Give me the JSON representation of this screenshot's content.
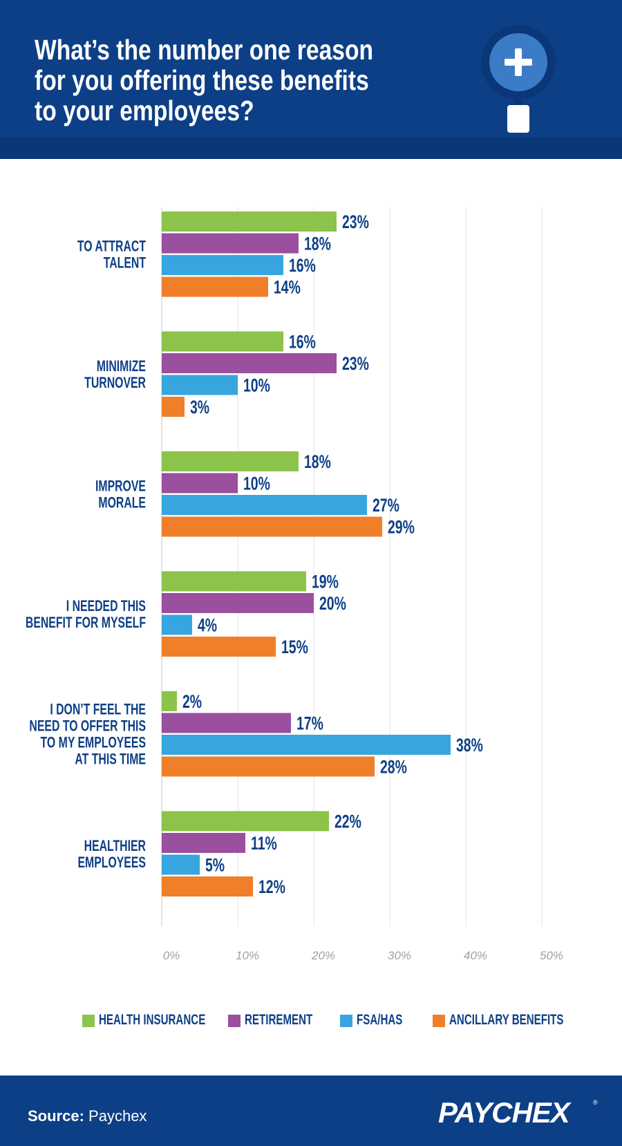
{
  "header": {
    "title_lines": [
      "What’s the number one reason",
      "for you offering these benefits",
      "to your employees?"
    ]
  },
  "colors": {
    "header_bg": "#0d3f86",
    "text_navy": "#0d3f86",
    "health": "#8cc34a",
    "retirement": "#9b4f9f",
    "fsa": "#37a6df",
    "ancillary": "#f07f2a"
  },
  "chart_data": {
    "type": "bar",
    "orientation": "horizontal",
    "categories": [
      [
        "TO ATTRACT",
        "TALENT"
      ],
      [
        "MINIMIZE",
        "TURNOVER"
      ],
      [
        "IMPROVE",
        "MORALE"
      ],
      [
        "I NEEDED THIS",
        "BENEFIT FOR MYSELF"
      ],
      [
        "I DON’T FEEL THE",
        "NEED TO OFFER THIS",
        "TO MY EMPLOYEES",
        "AT THIS TIME"
      ],
      [
        "HEALTHIER",
        "EMPLOYEES"
      ]
    ],
    "series": [
      {
        "name": "HEALTH INSURANCE",
        "color": "#8cc34a",
        "values": [
          23,
          16,
          18,
          19,
          2,
          22
        ]
      },
      {
        "name": "RETIREMENT",
        "color": "#9b4f9f",
        "values": [
          18,
          23,
          10,
          20,
          17,
          11
        ]
      },
      {
        "name": "FSA/HAS",
        "color": "#37a6df",
        "values": [
          16,
          10,
          27,
          4,
          38,
          5
        ]
      },
      {
        "name": "ANCILLARY BENEFITS",
        "color": "#f07f2a",
        "values": [
          14,
          3,
          29,
          15,
          28,
          12
        ]
      }
    ],
    "value_suffix": "%",
    "xlim": [
      0,
      50
    ],
    "xticks": [
      "0%",
      "10%",
      "20%",
      "30%",
      "40%",
      "50%"
    ],
    "grid": true,
    "legend": "bottom"
  },
  "footer": {
    "source_label": "Source:",
    "source_value": "Paychex",
    "logo": "PAYCHEX",
    "logo_mark": "®"
  }
}
